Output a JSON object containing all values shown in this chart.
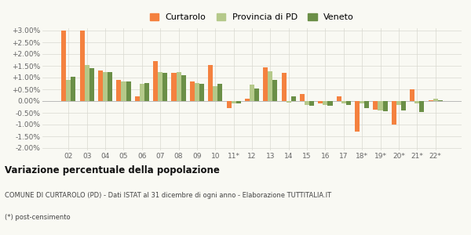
{
  "categories": [
    "02",
    "03",
    "04",
    "05",
    "06",
    "07",
    "08",
    "09",
    "10",
    "11*",
    "12",
    "13",
    "14",
    "15",
    "16",
    "17",
    "18*",
    "19*",
    "20*",
    "21*",
    "22*"
  ],
  "curtarolo": [
    3.0,
    3.0,
    1.3,
    0.9,
    0.2,
    1.7,
    1.2,
    0.85,
    1.55,
    -0.3,
    0.1,
    1.45,
    1.2,
    0.3,
    -0.1,
    0.2,
    -1.3,
    -0.35,
    -1.0,
    0.5,
    0.05
  ],
  "provincia_pd": [
    0.9,
    1.55,
    1.25,
    0.85,
    0.75,
    1.25,
    1.25,
    0.78,
    0.65,
    -0.1,
    0.7,
    1.28,
    -0.05,
    -0.15,
    -0.15,
    -0.1,
    -0.1,
    -0.4,
    -0.15,
    -0.1,
    0.1
  ],
  "veneto": [
    1.05,
    1.4,
    1.25,
    0.82,
    0.78,
    1.2,
    1.1,
    0.75,
    0.72,
    -0.1,
    0.55,
    0.9,
    0.2,
    -0.2,
    -0.2,
    -0.15,
    -0.3,
    -0.42,
    -0.4,
    -0.45,
    0.05
  ],
  "color_curtarolo": "#f4813f",
  "color_provincia": "#b5c98a",
  "color_veneto": "#6b8f47",
  "background_color": "#f9f9f3",
  "grid_color": "#d8d8d0",
  "title_bold": "Variazione percentuale della popolazione",
  "subtitle2": "COMUNE DI CURTAROLO (PD) - Dati ISTAT al 31 dicembre di ogni anno - Elaborazione TUTTITALIA.IT",
  "subtitle3": "(*) post-censimento",
  "ylim_min": -2.1,
  "ylim_max": 3.1,
  "yticks": [
    -2.0,
    -1.5,
    -1.0,
    -0.5,
    0.0,
    0.5,
    1.0,
    1.5,
    2.0,
    2.5,
    3.0
  ]
}
